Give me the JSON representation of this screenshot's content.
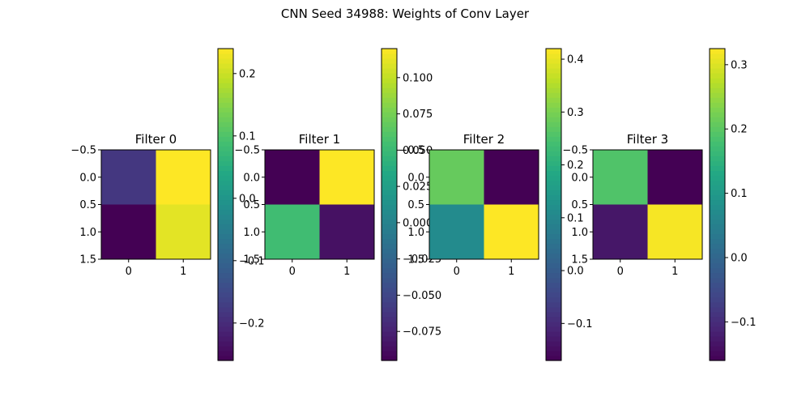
{
  "chart_data": {
    "type": "heatmap",
    "title": "CNN Seed 34988: Weights of Conv Layer",
    "colormap": "viridis",
    "x_ticks": [
      "0",
      "1"
    ],
    "y_ticks": [
      "−0.5",
      "0.0",
      "0.5",
      "1.0",
      "1.5"
    ],
    "x_range": [
      -0.5,
      1.5
    ],
    "y_range": [
      -0.5,
      1.5
    ],
    "grid": false,
    "panels": [
      {
        "title": "Filter 0",
        "values": [
          [
            -0.18,
            0.24
          ],
          [
            -0.26,
            0.22
          ]
        ],
        "vmin": -0.26,
        "vmax": 0.24,
        "colorbar_ticks": [
          {
            "value": -0.2,
            "label": "−0.2"
          },
          {
            "value": -0.1,
            "label": "−0.1"
          },
          {
            "value": 0.0,
            "label": "0.0"
          },
          {
            "value": 0.1,
            "label": "0.1"
          },
          {
            "value": 0.2,
            "label": "0.2"
          }
        ]
      },
      {
        "title": "Filter 1",
        "values": [
          [
            -0.095,
            0.12
          ],
          [
            0.053,
            -0.085
          ]
        ],
        "vmin": -0.095,
        "vmax": 0.12,
        "colorbar_ticks": [
          {
            "value": -0.075,
            "label": "−0.075"
          },
          {
            "value": -0.05,
            "label": "−0.050"
          },
          {
            "value": -0.025,
            "label": "−0.025"
          },
          {
            "value": 0.0,
            "label": "0.000"
          },
          {
            "value": 0.025,
            "label": "0.025"
          },
          {
            "value": 0.05,
            "label": "0.050"
          },
          {
            "value": 0.075,
            "label": "0.075"
          },
          {
            "value": 0.1,
            "label": "0.100"
          }
        ]
      },
      {
        "title": "Filter 2",
        "values": [
          [
            0.28,
            -0.17
          ],
          [
            0.11,
            0.42
          ]
        ],
        "vmin": -0.17,
        "vmax": 0.42,
        "colorbar_ticks": [
          {
            "value": -0.1,
            "label": "−0.1"
          },
          {
            "value": 0.0,
            "label": "0.0"
          },
          {
            "value": 0.1,
            "label": "0.1"
          },
          {
            "value": 0.2,
            "label": "0.2"
          },
          {
            "value": 0.3,
            "label": "0.3"
          },
          {
            "value": 0.4,
            "label": "0.4"
          }
        ]
      },
      {
        "title": "Filter 3",
        "values": [
          [
            0.19,
            -0.16
          ],
          [
            -0.13,
            0.32
          ]
        ],
        "vmin": -0.16,
        "vmax": 0.325,
        "colorbar_ticks": [
          {
            "value": -0.1,
            "label": "−0.1"
          },
          {
            "value": 0.0,
            "label": "0.0"
          },
          {
            "value": 0.1,
            "label": "0.1"
          },
          {
            "value": 0.2,
            "label": "0.2"
          },
          {
            "value": 0.3,
            "label": "0.3"
          }
        ]
      }
    ]
  }
}
